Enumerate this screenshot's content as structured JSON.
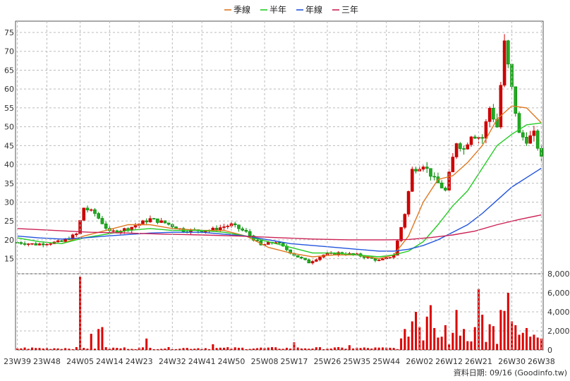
{
  "chart_data": {
    "type": "candlestick",
    "legend": [
      {
        "name": "季線",
        "color": "#e07820"
      },
      {
        "name": "半年",
        "color": "#22cc22"
      },
      {
        "name": "年線",
        "color": "#2255dd"
      },
      {
        "name": "三年",
        "color": "#cc2255"
      }
    ],
    "x_tick_labels": [
      "23W39",
      "23W48",
      "24W05",
      "24W14",
      "24W23",
      "24W32",
      "24W41",
      "24W50",
      "25W08",
      "25W17",
      "25W26",
      "25W35",
      "25W44",
      "26W02",
      "26W12",
      "26W21",
      "26W30",
      "26W38"
    ],
    "price_axis": {
      "ylim": [
        11,
        78
      ],
      "ticks": [
        15,
        20,
        25,
        30,
        35,
        40,
        45,
        50,
        55,
        60,
        65,
        70,
        75
      ]
    },
    "volume_axis": {
      "ylim": [
        0,
        8000
      ],
      "ticks": [
        "0",
        "2,000",
        "4,000",
        "6,000",
        "8,000"
      ]
    },
    "footer": "資料日期: 09/16  (Goodinfo.tw)",
    "ohlc_anchors": [
      {
        "week": 0,
        "close": 19.3
      },
      {
        "week": 5,
        "close": 18.8
      },
      {
        "week": 12,
        "close": 19.5
      },
      {
        "week": 16,
        "close": 21.5
      },
      {
        "week": 18,
        "close": 28.5
      },
      {
        "week": 21,
        "close": 27
      },
      {
        "week": 25,
        "close": 22
      },
      {
        "week": 30,
        "close": 23
      },
      {
        "week": 36,
        "close": 25.5
      },
      {
        "week": 40,
        "close": 24.5
      },
      {
        "week": 45,
        "close": 22.5
      },
      {
        "week": 52,
        "close": 22.5
      },
      {
        "week": 58,
        "close": 24
      },
      {
        "week": 62,
        "close": 22
      },
      {
        "week": 66,
        "close": 18.5
      },
      {
        "week": 70,
        "close": 19.5
      },
      {
        "week": 75,
        "close": 16
      },
      {
        "week": 79,
        "close": 14
      },
      {
        "week": 83,
        "close": 16
      },
      {
        "week": 87,
        "close": 16.5
      },
      {
        "week": 92,
        "close": 16
      },
      {
        "week": 98,
        "close": 14.5
      },
      {
        "week": 100,
        "close": 15
      },
      {
        "week": 102,
        "close": 16
      },
      {
        "week": 105,
        "close": 27
      },
      {
        "week": 107,
        "close": 38.5
      },
      {
        "week": 110,
        "close": 40
      },
      {
        "week": 113,
        "close": 36
      },
      {
        "week": 116,
        "close": 33
      },
      {
        "week": 119,
        "close": 46
      },
      {
        "week": 121,
        "close": 44
      },
      {
        "week": 123,
        "close": 48
      },
      {
        "week": 126,
        "close": 47
      },
      {
        "week": 128,
        "close": 55
      },
      {
        "week": 130,
        "close": 50
      },
      {
        "week": 132,
        "close": 72
      },
      {
        "week": 134,
        "close": 60
      },
      {
        "week": 136,
        "close": 48
      },
      {
        "week": 138,
        "close": 46.5
      },
      {
        "week": 140,
        "close": 48
      },
      {
        "week": 142,
        "close": 41.5
      }
    ],
    "moving_averages": {
      "季線": [
        [
          12,
          19
        ],
        [
          18,
          21
        ],
        [
          24,
          22.5
        ],
        [
          30,
          24
        ],
        [
          36,
          24
        ],
        [
          42,
          23
        ],
        [
          50,
          22.5
        ],
        [
          56,
          22.5
        ],
        [
          62,
          21
        ],
        [
          68,
          18
        ],
        [
          74,
          16.5
        ],
        [
          80,
          15.5
        ],
        [
          86,
          16
        ],
        [
          92,
          16
        ],
        [
          98,
          15
        ],
        [
          102,
          16
        ],
        [
          106,
          21
        ],
        [
          110,
          30
        ],
        [
          114,
          36
        ],
        [
          118,
          37
        ],
        [
          122,
          40.5
        ],
        [
          126,
          45
        ],
        [
          130,
          52
        ],
        [
          134,
          55.5
        ],
        [
          138,
          55
        ],
        [
          142,
          51
        ]
      ],
      "半年": [
        [
          0,
          20.5
        ],
        [
          6,
          19.5
        ],
        [
          12,
          19
        ],
        [
          18,
          20.5
        ],
        [
          24,
          21.5
        ],
        [
          30,
          22.5
        ],
        [
          36,
          23
        ],
        [
          42,
          22.5
        ],
        [
          50,
          22.5
        ],
        [
          56,
          22
        ],
        [
          62,
          21
        ],
        [
          68,
          19.5
        ],
        [
          74,
          18
        ],
        [
          80,
          16.5
        ],
        [
          86,
          16.5
        ],
        [
          92,
          16
        ],
        [
          98,
          15.5
        ],
        [
          102,
          16
        ],
        [
          106,
          17
        ],
        [
          110,
          19.5
        ],
        [
          114,
          24
        ],
        [
          118,
          29
        ],
        [
          122,
          33
        ],
        [
          126,
          39
        ],
        [
          130,
          45
        ],
        [
          134,
          48
        ],
        [
          138,
          50.5
        ],
        [
          142,
          51
        ]
      ],
      "年線": [
        [
          0,
          21
        ],
        [
          6,
          20.5
        ],
        [
          12,
          20.2
        ],
        [
          18,
          20.5
        ],
        [
          24,
          21
        ],
        [
          30,
          21.4
        ],
        [
          36,
          21.8
        ],
        [
          42,
          22
        ],
        [
          50,
          22
        ],
        [
          56,
          21.5
        ],
        [
          62,
          21
        ],
        [
          68,
          20
        ],
        [
          74,
          19
        ],
        [
          80,
          18.5
        ],
        [
          86,
          18
        ],
        [
          92,
          17.5
        ],
        [
          98,
          17
        ],
        [
          102,
          17
        ],
        [
          106,
          17.5
        ],
        [
          110,
          18.5
        ],
        [
          114,
          20
        ],
        [
          118,
          22
        ],
        [
          122,
          24
        ],
        [
          126,
          27
        ],
        [
          130,
          30.5
        ],
        [
          134,
          34
        ],
        [
          138,
          36.5
        ],
        [
          142,
          39
        ]
      ],
      "三年": [
        [
          0,
          23
        ],
        [
          10,
          22.5
        ],
        [
          20,
          22
        ],
        [
          30,
          21.8
        ],
        [
          40,
          21.5
        ],
        [
          50,
          21.3
        ],
        [
          60,
          21
        ],
        [
          70,
          20.6
        ],
        [
          80,
          20.2
        ],
        [
          90,
          20
        ],
        [
          100,
          20
        ],
        [
          106,
          20.1
        ],
        [
          112,
          20.6
        ],
        [
          118,
          21.3
        ],
        [
          124,
          22.3
        ],
        [
          130,
          24
        ],
        [
          136,
          25.4
        ],
        [
          142,
          26.6
        ]
      ]
    },
    "volume_spikes": [
      {
        "week": 17,
        "value": 7700
      },
      {
        "week": 20,
        "value": 1700
      },
      {
        "week": 22,
        "value": 2200
      },
      {
        "week": 23,
        "value": 2400
      },
      {
        "week": 35,
        "value": 1200
      },
      {
        "week": 53,
        "value": 600
      },
      {
        "week": 75,
        "value": 800
      },
      {
        "week": 90,
        "value": 500
      },
      {
        "week": 105,
        "value": 2200
      },
      {
        "week": 106,
        "value": 1400
      },
      {
        "week": 107,
        "value": 3000
      },
      {
        "week": 108,
        "value": 4000
      },
      {
        "week": 109,
        "value": 2400
      },
      {
        "week": 110,
        "value": 1000
      },
      {
        "week": 111,
        "value": 3500
      },
      {
        "week": 112,
        "value": 4700
      },
      {
        "week": 113,
        "value": 2300
      },
      {
        "week": 114,
        "value": 1300
      },
      {
        "week": 116,
        "value": 2600
      },
      {
        "week": 118,
        "value": 1800
      },
      {
        "week": 119,
        "value": 4200
      },
      {
        "week": 120,
        "value": 1500
      },
      {
        "week": 121,
        "value": 2200
      },
      {
        "week": 124,
        "value": 2400
      },
      {
        "week": 125,
        "value": 6400
      },
      {
        "week": 126,
        "value": 3700
      },
      {
        "week": 128,
        "value": 2700
      },
      {
        "week": 129,
        "value": 2500
      },
      {
        "week": 131,
        "value": 4200
      },
      {
        "week": 132,
        "value": 4100
      },
      {
        "week": 133,
        "value": 6000
      },
      {
        "week": 134,
        "value": 3000
      },
      {
        "week": 135,
        "value": 2600
      },
      {
        "week": 136,
        "value": 1600
      },
      {
        "week": 137,
        "value": 1800
      },
      {
        "week": 138,
        "value": 2300
      },
      {
        "week": 139,
        "value": 1400
      },
      {
        "week": 140,
        "value": 1600
      },
      {
        "week": 141,
        "value": 1300
      },
      {
        "week": 142,
        "value": 1200
      }
    ]
  }
}
